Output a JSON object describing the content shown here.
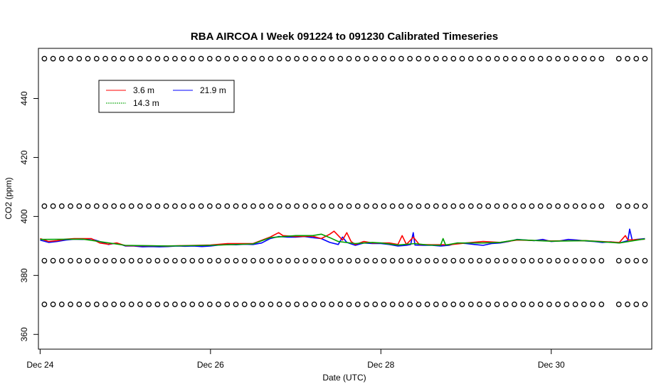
{
  "chart_data": {
    "type": "line",
    "title": "RBA AIRCOA I  Week 091224 to 091230  Calibrated Timeseries",
    "xlabel": "Date (UTC)",
    "ylabel": "CO2 (ppm)",
    "xlim": [
      -0.02,
      7.18
    ],
    "ylim": [
      355.0,
      457.0
    ],
    "x_ticks": [
      {
        "value": 0,
        "label": "Dec 24"
      },
      {
        "value": 2,
        "label": "Dec 26"
      },
      {
        "value": 4,
        "label": "Dec 28"
      },
      {
        "value": 6,
        "label": "Dec 30"
      }
    ],
    "y_ticks": [
      {
        "value": 360,
        "label": "360"
      },
      {
        "value": 380,
        "label": "380"
      },
      {
        "value": 400,
        "label": "400"
      },
      {
        "value": 420,
        "label": "420"
      },
      {
        "value": 440,
        "label": "440"
      }
    ],
    "legend": {
      "position": "top-left",
      "entries": [
        {
          "name": "3.6 m",
          "color": "#ff0000"
        },
        {
          "name": "21.9 m",
          "color": "#0000ff"
        },
        {
          "name": "14.3 m",
          "color": "#00a000"
        }
      ]
    },
    "calibration_points": {
      "marker": "open-circle",
      "levels": [
        453.5,
        403.5,
        385.0,
        370.2
      ],
      "x_start": 0.05,
      "x_end": 7.1,
      "count_per_level": 70,
      "gaps": [
        [
          6.68,
          6.78
        ]
      ]
    },
    "series": [
      {
        "name": "21.9 m",
        "color": "#0000ff",
        "points": [
          [
            0.0,
            392.0
          ],
          [
            0.1,
            391.2
          ],
          [
            0.2,
            391.5
          ],
          [
            0.3,
            392.0
          ],
          [
            0.4,
            392.3
          ],
          [
            0.5,
            392.2
          ],
          [
            0.6,
            392.4
          ],
          [
            0.7,
            391.5
          ],
          [
            0.8,
            390.5
          ],
          [
            0.9,
            391.0
          ],
          [
            1.0,
            390.0
          ],
          [
            1.1,
            390.0
          ],
          [
            1.2,
            389.7
          ],
          [
            1.3,
            389.8
          ],
          [
            1.4,
            389.7
          ],
          [
            1.5,
            389.8
          ],
          [
            1.6,
            390.0
          ],
          [
            1.7,
            389.9
          ],
          [
            1.8,
            390.0
          ],
          [
            1.9,
            389.8
          ],
          [
            2.0,
            390.0
          ],
          [
            2.1,
            390.3
          ],
          [
            2.2,
            390.5
          ],
          [
            2.3,
            390.4
          ],
          [
            2.4,
            390.6
          ],
          [
            2.5,
            390.5
          ],
          [
            2.6,
            391.0
          ],
          [
            2.7,
            392.5
          ],
          [
            2.8,
            393.2
          ],
          [
            2.9,
            393.0
          ],
          [
            3.0,
            393.0
          ],
          [
            3.1,
            393.2
          ],
          [
            3.2,
            392.8
          ],
          [
            3.3,
            392.5
          ],
          [
            3.4,
            391.2
          ],
          [
            3.5,
            390.5
          ],
          [
            3.55,
            393.0
          ],
          [
            3.6,
            391.2
          ],
          [
            3.7,
            390.2
          ],
          [
            3.8,
            391.0
          ],
          [
            3.9,
            390.8
          ],
          [
            4.0,
            390.8
          ],
          [
            4.1,
            390.5
          ],
          [
            4.2,
            390.0
          ],
          [
            4.3,
            390.2
          ],
          [
            4.35,
            390.5
          ],
          [
            4.38,
            394.5
          ],
          [
            4.4,
            390.3
          ],
          [
            4.5,
            390.2
          ],
          [
            4.6,
            390.2
          ],
          [
            4.7,
            390.0
          ],
          [
            4.8,
            390.2
          ],
          [
            4.9,
            391.0
          ],
          [
            5.0,
            390.8
          ],
          [
            5.1,
            390.5
          ],
          [
            5.2,
            390.2
          ],
          [
            5.3,
            390.8
          ],
          [
            5.4,
            391.0
          ],
          [
            5.5,
            391.5
          ],
          [
            5.6,
            392.2
          ],
          [
            5.7,
            392.0
          ],
          [
            5.8,
            391.8
          ],
          [
            5.9,
            392.2
          ],
          [
            6.0,
            391.5
          ],
          [
            6.1,
            391.7
          ],
          [
            6.2,
            392.2
          ],
          [
            6.3,
            392.0
          ],
          [
            6.4,
            391.7
          ],
          [
            6.5,
            391.5
          ],
          [
            6.6,
            391.2
          ],
          [
            6.7,
            391.4
          ],
          [
            6.8,
            391.0
          ],
          [
            6.9,
            391.8
          ],
          [
            6.92,
            395.7
          ],
          [
            6.95,
            392.0
          ],
          [
            7.0,
            392.2
          ],
          [
            7.1,
            392.5
          ]
        ]
      },
      {
        "name": "3.6 m",
        "color": "#ff0000",
        "points": [
          [
            0.0,
            392.5
          ],
          [
            0.1,
            391.5
          ],
          [
            0.2,
            391.8
          ],
          [
            0.3,
            392.3
          ],
          [
            0.4,
            392.5
          ],
          [
            0.5,
            392.5
          ],
          [
            0.6,
            392.5
          ],
          [
            0.7,
            391.0
          ],
          [
            0.8,
            390.6
          ],
          [
            0.9,
            391.0
          ],
          [
            1.0,
            390.1
          ],
          [
            1.5,
            390.0
          ],
          [
            2.0,
            390.3
          ],
          [
            2.2,
            390.8
          ],
          [
            2.5,
            390.8
          ],
          [
            2.7,
            393.0
          ],
          [
            2.8,
            394.5
          ],
          [
            2.85,
            393.5
          ],
          [
            3.0,
            393.2
          ],
          [
            3.2,
            393.3
          ],
          [
            3.3,
            392.5
          ],
          [
            3.4,
            394.0
          ],
          [
            3.45,
            395.0
          ],
          [
            3.5,
            393.5
          ],
          [
            3.55,
            392.0
          ],
          [
            3.6,
            394.5
          ],
          [
            3.65,
            391.5
          ],
          [
            3.7,
            390.5
          ],
          [
            3.8,
            391.5
          ],
          [
            3.9,
            391.0
          ],
          [
            4.0,
            391.0
          ],
          [
            4.1,
            391.0
          ],
          [
            4.2,
            390.5
          ],
          [
            4.25,
            393.5
          ],
          [
            4.3,
            390.5
          ],
          [
            4.38,
            393.0
          ],
          [
            4.45,
            390.5
          ],
          [
            4.6,
            390.4
          ],
          [
            4.8,
            390.4
          ],
          [
            5.0,
            391.0
          ],
          [
            5.2,
            391.5
          ],
          [
            5.4,
            391.2
          ],
          [
            5.6,
            392.0
          ],
          [
            6.0,
            391.7
          ],
          [
            6.4,
            391.8
          ],
          [
            6.8,
            391.2
          ],
          [
            6.87,
            393.5
          ],
          [
            6.9,
            392.0
          ],
          [
            7.1,
            392.3
          ]
        ]
      },
      {
        "name": "14.3 m",
        "color": "#00a000",
        "points": [
          [
            0.0,
            392.2
          ],
          [
            0.5,
            392.3
          ],
          [
            1.0,
            390.2
          ],
          [
            1.5,
            390.0
          ],
          [
            2.0,
            390.2
          ],
          [
            2.5,
            390.7
          ],
          [
            2.7,
            392.8
          ],
          [
            3.0,
            393.5
          ],
          [
            3.2,
            393.5
          ],
          [
            3.3,
            394.0
          ],
          [
            3.4,
            392.8
          ],
          [
            3.5,
            391.5
          ],
          [
            3.7,
            390.8
          ],
          [
            3.9,
            391.2
          ],
          [
            4.0,
            391.0
          ],
          [
            4.2,
            390.3
          ],
          [
            4.4,
            390.8
          ],
          [
            4.55,
            390.3
          ],
          [
            4.7,
            390.2
          ],
          [
            4.73,
            392.5
          ],
          [
            4.76,
            390.3
          ],
          [
            4.9,
            391.0
          ],
          [
            5.2,
            391.0
          ],
          [
            5.4,
            391.2
          ],
          [
            5.6,
            392.1
          ],
          [
            6.0,
            391.6
          ],
          [
            6.4,
            391.8
          ],
          [
            6.8,
            391.0
          ],
          [
            7.1,
            392.4
          ]
        ]
      }
    ]
  }
}
